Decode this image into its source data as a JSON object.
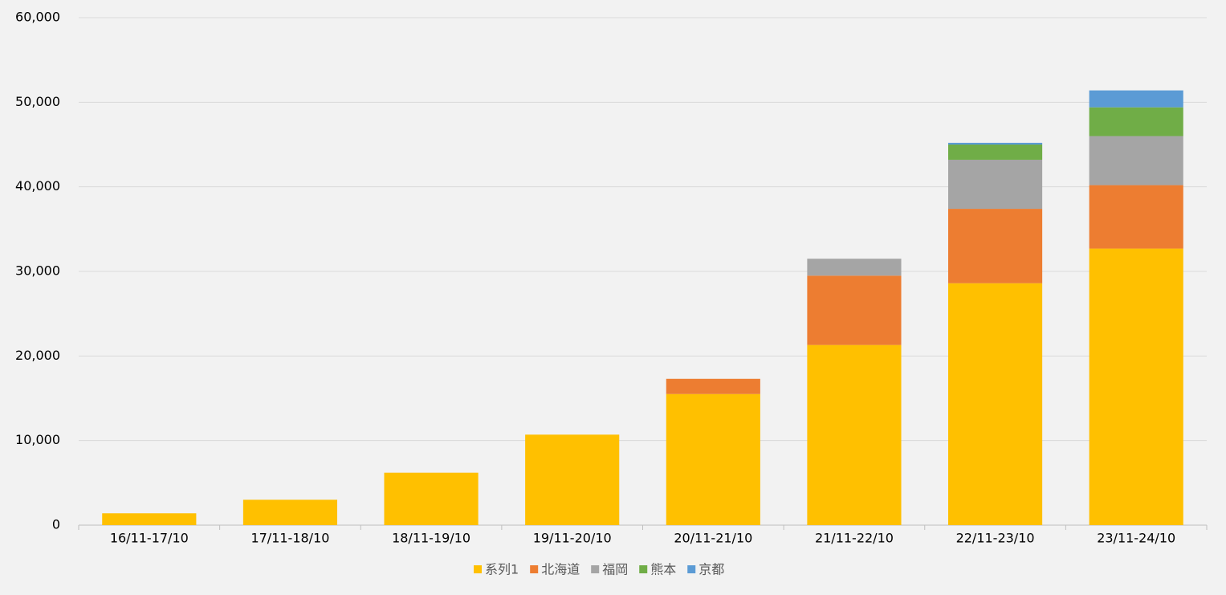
{
  "chart_data": {
    "type": "stacked_bar",
    "categories": [
      "16/11-17/10",
      "17/11-18/10",
      "18/11-19/10",
      "19/11-20/10",
      "20/11-21/10",
      "21/11-22/10",
      "22/11-23/10",
      "23/11-24/10"
    ],
    "series": [
      {
        "name": "系列1",
        "color": "#ffc000",
        "values": [
          1400,
          3000,
          6200,
          10700,
          15500,
          21300,
          28600,
          32700
        ]
      },
      {
        "name": "北海道",
        "color": "#ed7d31",
        "values": [
          0,
          0,
          0,
          0,
          1800,
          8200,
          8800,
          7500
        ]
      },
      {
        "name": "福岡",
        "color": "#a5a5a5",
        "values": [
          0,
          0,
          0,
          0,
          0,
          2000,
          5800,
          5800
        ]
      },
      {
        "name": "熊本",
        "color": "#70ad47",
        "values": [
          0,
          0,
          0,
          0,
          0,
          0,
          1800,
          3400
        ]
      },
      {
        "name": "京都",
        "color": "#5b9bd5",
        "values": [
          0,
          0,
          0,
          0,
          0,
          0,
          200,
          2000
        ]
      }
    ],
    "ylim": [
      0,
      60000
    ],
    "yticks": [
      0,
      {
        "value": 10000,
        "label": "10,000"
      },
      {
        "value": 20000,
        "label": "20,000"
      },
      {
        "value": 30000,
        "label": "30,000"
      },
      {
        "value": 40000,
        "label": "40,000"
      },
      {
        "value": 50000,
        "label": "50,000"
      },
      {
        "value": 60000,
        "label": "60,000"
      }
    ],
    "grid": true,
    "legend": "bottom"
  }
}
